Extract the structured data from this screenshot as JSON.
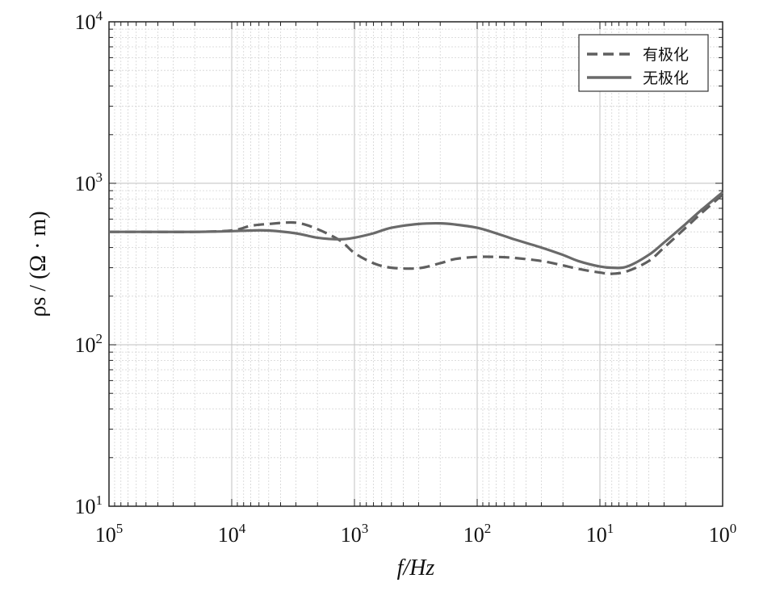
{
  "chart_data": {
    "type": "line",
    "xlabel": "f/Hz",
    "ylabel": "ρs / (Ω · m)",
    "x_scale": "log",
    "y_scale": "log",
    "x_reversed": true,
    "xlim": [
      100000,
      1
    ],
    "ylim": [
      10,
      10000
    ],
    "grid": true,
    "legend_position": "top-right",
    "x_ticks": [
      {
        "value": 100000,
        "base": "10",
        "exp": "5"
      },
      {
        "value": 10000,
        "base": "10",
        "exp": "4"
      },
      {
        "value": 1000,
        "base": "10",
        "exp": "3"
      },
      {
        "value": 100,
        "base": "10",
        "exp": "2"
      },
      {
        "value": 10,
        "base": "10",
        "exp": "1"
      },
      {
        "value": 1,
        "base": "10",
        "exp": "0"
      }
    ],
    "y_ticks": [
      {
        "value": 10,
        "base": "10",
        "exp": "1"
      },
      {
        "value": 100,
        "base": "10",
        "exp": "2"
      },
      {
        "value": 1000,
        "base": "10",
        "exp": "3"
      },
      {
        "value": 10000,
        "base": "10",
        "exp": "4"
      }
    ],
    "series": [
      {
        "name": "有极化",
        "style": "dashed",
        "color": "#5f5f5f",
        "x": [
          100000,
          50000,
          20000,
          10000,
          7000,
          5000,
          3000,
          2000,
          1300,
          1000,
          700,
          500,
          300,
          200,
          150,
          100,
          70,
          50,
          30,
          20,
          15,
          10,
          8,
          6,
          4,
          3,
          2,
          1.5,
          1
        ],
        "y": [
          500,
          500,
          500,
          510,
          545,
          560,
          570,
          520,
          440,
          370,
          320,
          300,
          298,
          320,
          340,
          350,
          350,
          345,
          330,
          310,
          295,
          280,
          275,
          285,
          330,
          400,
          530,
          650,
          850
        ]
      },
      {
        "name": "无极化",
        "style": "solid",
        "color": "#6a6a6a",
        "x": [
          100000,
          50000,
          20000,
          10000,
          7000,
          5000,
          3000,
          2000,
          1300,
          1000,
          700,
          500,
          300,
          200,
          150,
          100,
          70,
          50,
          30,
          20,
          15,
          10,
          8,
          6,
          4,
          3,
          2,
          1.5,
          1
        ],
        "y": [
          500,
          500,
          500,
          505,
          510,
          510,
          490,
          460,
          450,
          460,
          490,
          530,
          560,
          565,
          555,
          530,
          490,
          450,
          400,
          360,
          330,
          305,
          300,
          305,
          360,
          430,
          560,
          680,
          880
        ]
      }
    ]
  },
  "colors": {
    "grid": "#d4d4d4",
    "grid_major": "#c2c2c2",
    "axes": "#222222"
  }
}
